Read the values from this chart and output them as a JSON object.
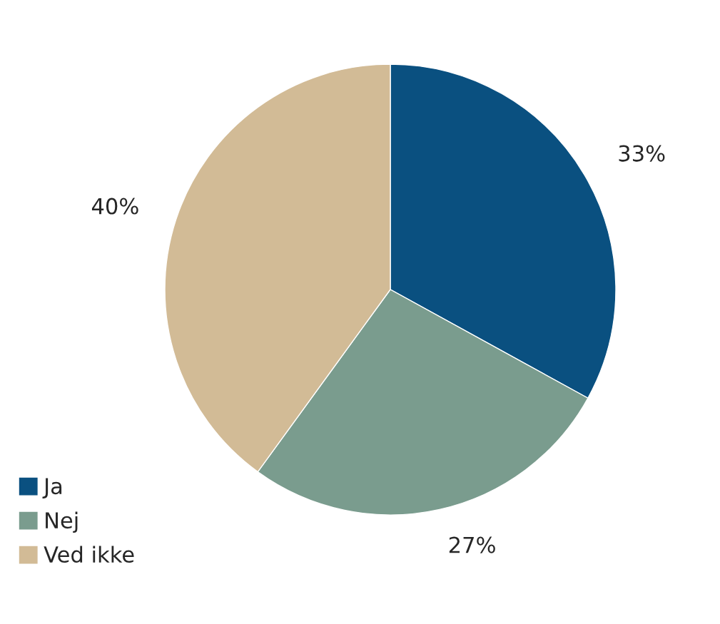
{
  "chart_data": {
    "type": "pie",
    "categories": [
      "Ja",
      "Nej",
      "Ved ikke"
    ],
    "values": [
      33,
      27,
      40
    ],
    "value_labels": [
      "33%",
      "27%",
      "40%"
    ],
    "colors": [
      "#0a5080",
      "#7a9c8e",
      "#d2bb96"
    ],
    "legend": "bottom left"
  }
}
